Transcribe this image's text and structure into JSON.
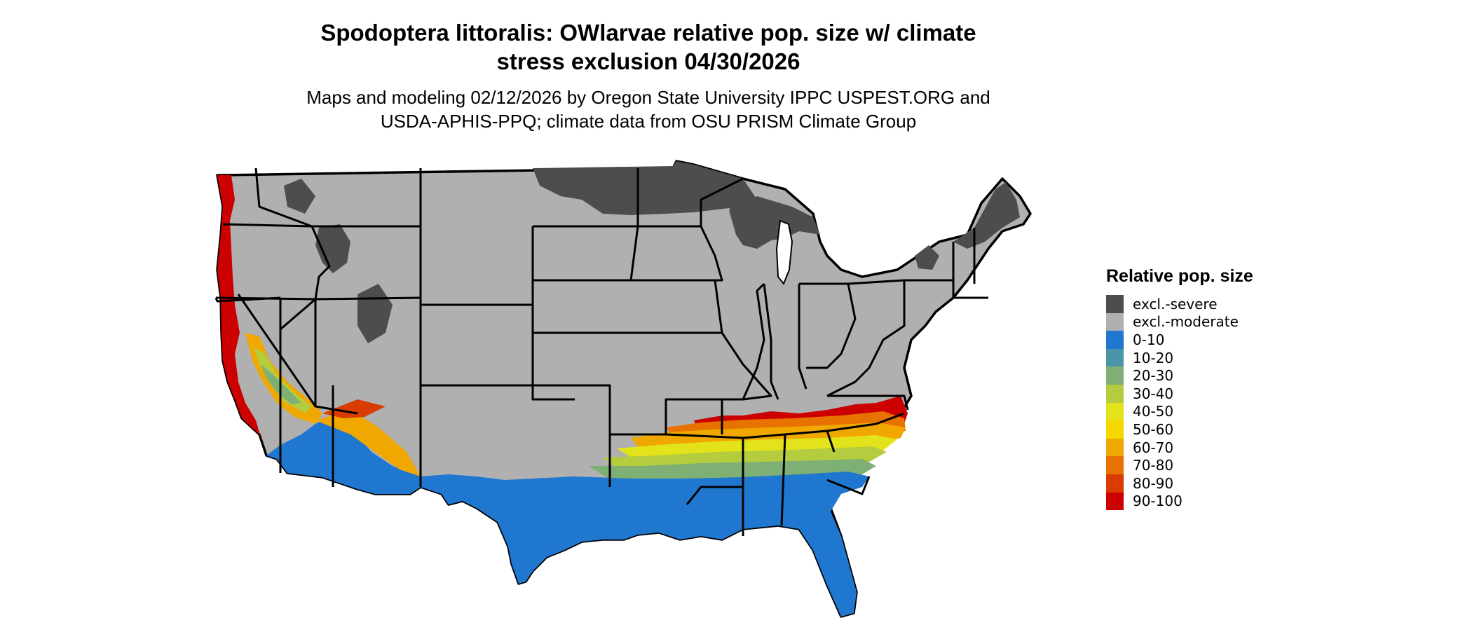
{
  "title": {
    "line1": "Spodoptera littoralis: OWlarvae relative pop. size w/ climate",
    "line2": "stress exclusion 04/30/2026"
  },
  "subtitle": {
    "line1": "Maps and modeling 02/12/2026 by Oregon State University IPPC USPEST.ORG and",
    "line2": "USDA-APHIS-PPQ; climate data from OSU PRISM Climate Group"
  },
  "legend": {
    "title": "Relative pop. size",
    "items": [
      {
        "label": "excl.-severe",
        "color": "#4d4d4d"
      },
      {
        "label": "excl.-moderate",
        "color": "#b0b0b0"
      },
      {
        "label": "0-10",
        "color": "#1f77cf"
      },
      {
        "label": "10-20",
        "color": "#4a95a8"
      },
      {
        "label": "20-30",
        "color": "#7eb075"
      },
      {
        "label": "30-40",
        "color": "#b5cc3f"
      },
      {
        "label": "40-50",
        "color": "#e3e31c"
      },
      {
        "label": "50-60",
        "color": "#f5d800"
      },
      {
        "label": "60-70",
        "color": "#f0a800"
      },
      {
        "label": "70-80",
        "color": "#e87200"
      },
      {
        "label": "80-90",
        "color": "#d93b00"
      },
      {
        "label": "90-100",
        "color": "#cc0000"
      }
    ]
  }
}
